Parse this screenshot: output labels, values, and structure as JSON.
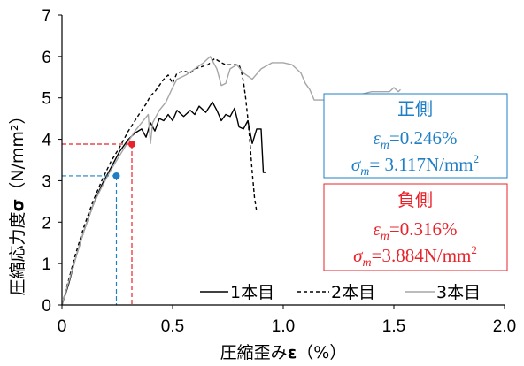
{
  "colors": {
    "positive": "#1F7FC4",
    "negative": "#E8232A",
    "series_1": "#000000",
    "series_2": "#000000",
    "series_3": "#A6A6A6",
    "axis": "#000000"
  },
  "chart_data": {
    "type": "line",
    "xlabel": "圧縮歪み",
    "xlabel_symbol": "ε",
    "xlabel_unit": "（%）",
    "ylabel": "圧縮応力度",
    "ylabel_symbol": "σ",
    "ylabel_unit": "（N/mm²）",
    "xlim": [
      0,
      2.0
    ],
    "ylim": [
      0,
      7
    ],
    "xticks": [
      "0",
      "0.5",
      "1.0",
      "1.5",
      "2.0"
    ],
    "yticks": [
      "0",
      "1",
      "2",
      "3",
      "4",
      "5",
      "6",
      "7"
    ],
    "grid": false,
    "legend_position": "bottom-right",
    "series": [
      {
        "name": "1本目",
        "line_style": "solid",
        "color": "#000000",
        "x": [
          0,
          0.03,
          0.06,
          0.1,
          0.14,
          0.18,
          0.22,
          0.26,
          0.3,
          0.33,
          0.36,
          0.38,
          0.4,
          0.42,
          0.44,
          0.46,
          0.48,
          0.5,
          0.52,
          0.55,
          0.58,
          0.6,
          0.62,
          0.65,
          0.68,
          0.7,
          0.72,
          0.74,
          0.76,
          0.78,
          0.8,
          0.82,
          0.84,
          0.86,
          0.88,
          0.9,
          0.91,
          0.92
        ],
        "y": [
          0,
          0.5,
          1.1,
          1.8,
          2.4,
          2.9,
          3.3,
          3.7,
          4.0,
          4.15,
          4.25,
          4.05,
          4.4,
          4.2,
          4.5,
          4.45,
          4.6,
          4.45,
          4.7,
          4.55,
          4.7,
          4.6,
          4.8,
          4.65,
          4.9,
          4.7,
          4.45,
          4.6,
          4.55,
          4.75,
          4.3,
          4.25,
          4.45,
          3.9,
          4.25,
          4.25,
          3.2,
          3.2
        ]
      },
      {
        "name": "2本目",
        "line_style": "dashed",
        "color": "#000000",
        "x": [
          0,
          0.03,
          0.06,
          0.1,
          0.14,
          0.18,
          0.22,
          0.26,
          0.3,
          0.33,
          0.36,
          0.38,
          0.4,
          0.42,
          0.44,
          0.46,
          0.48,
          0.5,
          0.52,
          0.55,
          0.58,
          0.6,
          0.63,
          0.66,
          0.69,
          0.72,
          0.74,
          0.77,
          0.8,
          0.81,
          0.82,
          0.83,
          0.84,
          0.85,
          0.86,
          0.87,
          0.88
        ],
        "y": [
          0,
          0.6,
          1.2,
          1.9,
          2.5,
          3.0,
          3.45,
          3.8,
          4.2,
          4.45,
          4.7,
          4.85,
          5.05,
          5.15,
          5.3,
          5.45,
          5.55,
          5.35,
          5.6,
          5.65,
          5.6,
          5.7,
          5.75,
          5.8,
          5.95,
          5.85,
          5.8,
          5.8,
          5.8,
          5.65,
          5.4,
          5.0,
          4.5,
          3.9,
          3.2,
          2.6,
          2.25
        ]
      },
      {
        "name": "3本目",
        "line_style": "solid",
        "color": "#A6A6A6",
        "x": [
          0,
          0.03,
          0.06,
          0.1,
          0.14,
          0.18,
          0.22,
          0.26,
          0.3,
          0.33,
          0.36,
          0.39,
          0.4,
          0.41,
          0.44,
          0.47,
          0.5,
          0.52,
          0.56,
          0.6,
          0.64,
          0.67,
          0.7,
          0.72,
          0.74,
          0.76,
          0.79,
          0.82,
          0.86,
          0.9,
          0.95,
          1.0,
          1.04,
          1.08,
          1.1,
          1.12,
          1.14,
          1.17,
          1.2,
          1.23,
          1.26,
          1.3,
          1.33,
          1.36,
          1.4,
          1.44,
          1.48,
          1.5,
          1.52,
          1.53
        ],
        "y": [
          0,
          0.55,
          1.1,
          1.8,
          2.4,
          2.85,
          3.25,
          3.6,
          3.95,
          4.2,
          4.4,
          4.6,
          3.9,
          4.4,
          4.7,
          4.9,
          5.25,
          5.45,
          5.55,
          5.7,
          5.85,
          6.0,
          5.7,
          5.3,
          5.35,
          5.7,
          5.8,
          5.6,
          5.45,
          5.7,
          5.85,
          5.85,
          5.8,
          5.6,
          5.35,
          5.2,
          4.95,
          4.95,
          4.95,
          5.05,
          5.0,
          5.05,
          4.95,
          5.1,
          5.15,
          5.15,
          5.15,
          5.25,
          5.15,
          5.2
        ]
      }
    ],
    "markers": [
      {
        "name": "positive",
        "x": 0.246,
        "y": 3.117,
        "color": "#1F7FC4"
      },
      {
        "name": "negative",
        "x": 0.316,
        "y": 3.884,
        "color": "#E8232A"
      }
    ],
    "annotations": {
      "positive_box": {
        "title": "正側",
        "eps_symbol": "ε",
        "eps_sub": "m",
        "eps_value": "=0.246%",
        "sigma_symbol": "σ",
        "sigma_sub": "m",
        "sigma_value": "= 3.117N/mm",
        "sigma_sup": "2"
      },
      "negative_box": {
        "title": "負側",
        "eps_symbol": "ε",
        "eps_sub": "m",
        "eps_value": "=0.316%",
        "sigma_symbol": "σ",
        "sigma_sub": "m",
        "sigma_value": "=3.884N/mm",
        "sigma_sup": "2"
      }
    }
  }
}
